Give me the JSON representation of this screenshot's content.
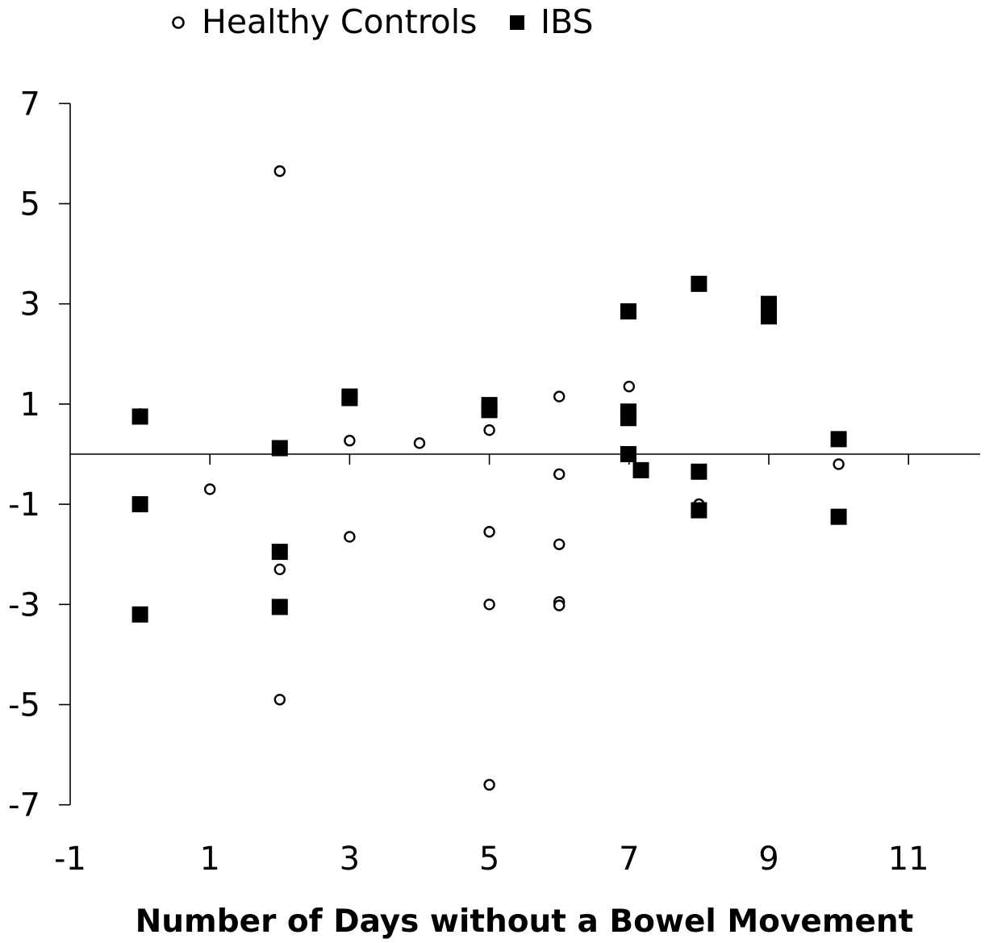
{
  "chart_data": {
    "type": "scatter",
    "title": "",
    "xlabel": "Number of Days without a Bowel Movement",
    "ylabel": "",
    "xlim": [
      -1,
      12
    ],
    "ylim": [
      -7,
      7
    ],
    "x_ticks": [
      -1,
      1,
      3,
      5,
      7,
      9,
      11
    ],
    "y_ticks": [
      7,
      5,
      3,
      1,
      -1,
      -3,
      -5,
      -7
    ],
    "x_tick_marks": [
      1,
      3,
      5,
      7,
      9,
      11
    ],
    "legend_position": "top",
    "grid": false,
    "reference_line_y": 0,
    "series": [
      {
        "name": "Healthy Controls",
        "marker": "open-circle",
        "color": "#000000",
        "points": [
          [
            0,
            0.8
          ],
          [
            1,
            -0.7
          ],
          [
            2,
            5.65
          ],
          [
            2,
            -2.3
          ],
          [
            2,
            -4.9
          ],
          [
            3,
            0.27
          ],
          [
            3,
            -1.65
          ],
          [
            4,
            0.22
          ],
          [
            5,
            0.48
          ],
          [
            5,
            -1.55
          ],
          [
            5,
            -3.0
          ],
          [
            5,
            -6.6
          ],
          [
            6,
            1.15
          ],
          [
            6,
            -0.4
          ],
          [
            6,
            -1.8
          ],
          [
            6,
            -2.95
          ],
          [
            6,
            -3.02
          ],
          [
            7,
            1.35
          ],
          [
            8,
            -1.0
          ],
          [
            10,
            -0.2
          ]
        ]
      },
      {
        "name": "IBS",
        "marker": "filled-square",
        "color": "#000000",
        "points": [
          [
            0,
            0.75
          ],
          [
            0,
            -1.0
          ],
          [
            0,
            -3.2
          ],
          [
            2,
            0.12
          ],
          [
            2,
            -1.95
          ],
          [
            2,
            -3.05
          ],
          [
            3,
            1.12
          ],
          [
            3,
            1.15
          ],
          [
            5,
            0.98
          ],
          [
            5,
            0.88
          ],
          [
            6.99,
            2.85
          ],
          [
            6.99,
            0.85
          ],
          [
            6.99,
            0.72
          ],
          [
            6.99,
            0.0
          ],
          [
            7.17,
            -0.32
          ],
          [
            8,
            3.4
          ],
          [
            8,
            -0.35
          ],
          [
            8,
            -1.12
          ],
          [
            9,
            3.0
          ],
          [
            9,
            2.75
          ],
          [
            10,
            0.3
          ],
          [
            10,
            -1.25
          ]
        ]
      }
    ]
  }
}
